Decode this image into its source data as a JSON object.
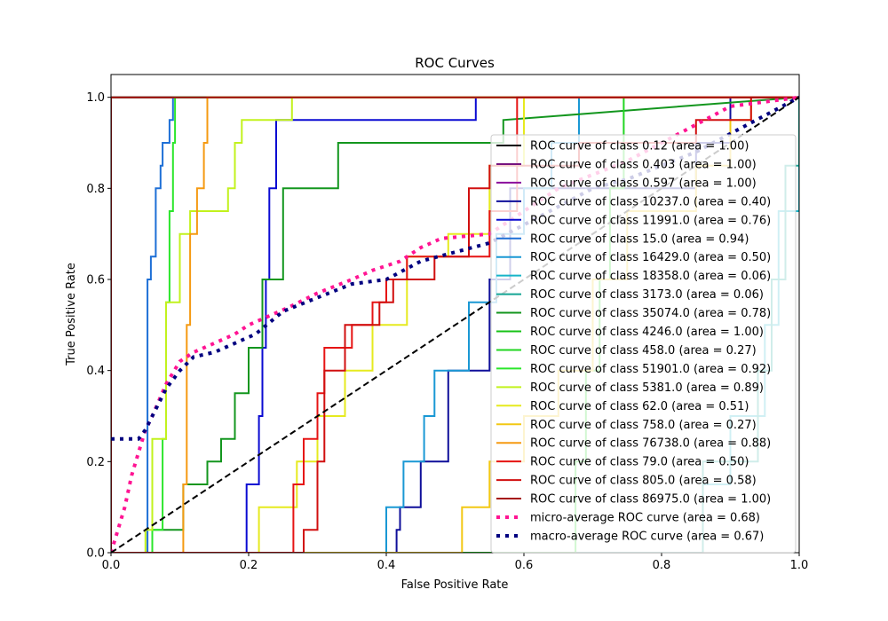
{
  "chart_data": {
    "type": "line",
    "title": "ROC Curves",
    "xlabel": "False Positive Rate",
    "ylabel": "True Positive Rate",
    "xlim": [
      0.0,
      1.0
    ],
    "ylim": [
      0.0,
      1.05
    ],
    "xticks": [
      "0.0",
      "0.2",
      "0.4",
      "0.6",
      "0.8",
      "1.0"
    ],
    "yticks": [
      "0.0",
      "0.2",
      "0.4",
      "0.6",
      "0.8",
      "1.0"
    ],
    "grid": false,
    "legend_position": "lower right",
    "series": [
      {
        "name": "ROC curve of class 0.12 (area = 1.00)",
        "color": "#000000",
        "style": "solid",
        "x": [
          0,
          0,
          1
        ],
        "y": [
          0,
          1,
          1
        ]
      },
      {
        "name": "ROC curve of class 0.403 (area = 1.00)",
        "color": "#76137f",
        "style": "solid",
        "x": [
          0,
          0,
          1
        ],
        "y": [
          0,
          1,
          1
        ]
      },
      {
        "name": "ROC curve of class 0.597 (area = 1.00)",
        "color": "#8b0f9c",
        "style": "solid",
        "x": [
          0,
          0,
          1
        ],
        "y": [
          0,
          1,
          1
        ]
      },
      {
        "name": "ROC curve of class 10237.0 (area = 0.40)",
        "color": "#0f0f9a",
        "style": "solid",
        "x": [
          0.415,
          0.415,
          0.42,
          0.42,
          0.45,
          0.45,
          0.49,
          0.49,
          0.55,
          0.55,
          0.58,
          0.58,
          0.85,
          0.85,
          0.9,
          0.9,
          1.0
        ],
        "y": [
          0,
          0.05,
          0.05,
          0.1,
          0.1,
          0.2,
          0.2,
          0.4,
          0.4,
          0.6,
          0.6,
          0.8,
          0.8,
          0.9,
          0.9,
          1.0,
          1.0
        ]
      },
      {
        "name": "ROC curve of class 11991.0 (area = 0.76)",
        "color": "#0a0ad2",
        "style": "solid",
        "x": [
          0,
          0.197,
          0.197,
          0.215,
          0.215,
          0.22,
          0.22,
          0.225,
          0.225,
          0.23,
          0.23,
          0.24,
          0.24,
          0.53,
          0.53,
          1.0
        ],
        "y": [
          0,
          0,
          0.15,
          0.15,
          0.3,
          0.3,
          0.45,
          0.45,
          0.6,
          0.6,
          0.8,
          0.8,
          0.95,
          0.95,
          1.0,
          1.0
        ]
      },
      {
        "name": "ROC curve of class 15.0 (area = 0.94)",
        "color": "#1d6fd6",
        "style": "solid",
        "x": [
          0,
          0.053,
          0.053,
          0.058,
          0.058,
          0.065,
          0.065,
          0.072,
          0.072,
          0.075,
          0.075,
          0.085,
          0.085,
          0.09,
          0.09,
          1.0
        ],
        "y": [
          0,
          0,
          0.6,
          0.6,
          0.65,
          0.65,
          0.8,
          0.8,
          0.85,
          0.85,
          0.9,
          0.9,
          0.95,
          0.95,
          1.0,
          1.0
        ]
      },
      {
        "name": "ROC curve of class 16429.0 (area = 0.50)",
        "color": "#1a98d4",
        "style": "solid",
        "x": [
          0,
          0.4,
          0.4,
          0.425,
          0.425,
          0.455,
          0.455,
          0.47,
          0.47,
          0.52,
          0.52,
          0.56,
          0.56,
          0.6,
          0.6,
          0.64,
          0.64,
          0.68,
          0.68,
          1.0
        ],
        "y": [
          0,
          0,
          0.1,
          0.1,
          0.2,
          0.2,
          0.3,
          0.3,
          0.4,
          0.4,
          0.55,
          0.55,
          0.7,
          0.7,
          0.8,
          0.8,
          0.9,
          0.9,
          1.0,
          1.0
        ]
      },
      {
        "name": "ROC curve of class 18358.0 (area = 0.06)",
        "color": "#17b4c8",
        "style": "solid",
        "x": [
          0,
          0.86,
          0.86,
          0.9,
          0.9,
          0.95,
          0.95,
          0.97,
          0.97,
          1.0,
          1.0
        ],
        "y": [
          0,
          0,
          0.15,
          0.15,
          0.3,
          0.3,
          0.5,
          0.5,
          0.75,
          0.75,
          1.0
        ]
      },
      {
        "name": "ROC curve of class 3173.0 (area = 0.06)",
        "color": "#14a594",
        "style": "solid",
        "x": [
          0,
          0.86,
          0.86,
          0.94,
          0.94,
          0.96,
          0.96,
          0.98,
          0.98,
          1.0,
          1.0
        ],
        "y": [
          0,
          0,
          0.2,
          0.2,
          0.4,
          0.4,
          0.6,
          0.6,
          0.85,
          0.85,
          1.0
        ]
      },
      {
        "name": "ROC curve of class 35074.0 (area = 0.78)",
        "color": "#13961e",
        "style": "solid",
        "x": [
          0,
          0.06,
          0.06,
          0.105,
          0.105,
          0.14,
          0.14,
          0.16,
          0.16,
          0.18,
          0.18,
          0.2,
          0.2,
          0.22,
          0.22,
          0.25,
          0.25,
          0.33,
          0.33,
          0.57,
          0.57,
          1.0
        ],
        "y": [
          0,
          0,
          0.05,
          0.05,
          0.15,
          0.15,
          0.2,
          0.2,
          0.25,
          0.25,
          0.35,
          0.35,
          0.45,
          0.45,
          0.6,
          0.6,
          0.8,
          0.8,
          0.9,
          0.9,
          0.95,
          1.0
        ]
      },
      {
        "name": "ROC curve of class 4246.0 (area = 1.00)",
        "color": "#17c217",
        "style": "solid",
        "x": [
          0,
          0,
          1
        ],
        "y": [
          0,
          1,
          1
        ]
      },
      {
        "name": "ROC curve of class 458.0 (area = 0.27)",
        "color": "#21d621",
        "style": "solid",
        "x": [
          0,
          0.675,
          0.675,
          0.69,
          0.69,
          0.71,
          0.71,
          0.725,
          0.725,
          0.745,
          0.745,
          1.0
        ],
        "y": [
          0,
          0,
          0.2,
          0.2,
          0.4,
          0.4,
          0.6,
          0.6,
          0.8,
          0.8,
          1.0,
          1.0
        ]
      },
      {
        "name": "ROC curve of class 51901.0 (area = 0.92)",
        "color": "#2be62b",
        "style": "solid",
        "x": [
          0,
          0.06,
          0.06,
          0.075,
          0.075,
          0.08,
          0.08,
          0.085,
          0.085,
          0.09,
          0.09,
          0.093,
          0.093,
          1.0
        ],
        "y": [
          0,
          0,
          0.05,
          0.05,
          0.25,
          0.25,
          0.55,
          0.55,
          0.75,
          0.75,
          0.9,
          0.9,
          1.0,
          1.0
        ]
      },
      {
        "name": "ROC curve of class 5381.0 (area = 0.89)",
        "color": "#c2f21d",
        "style": "solid",
        "x": [
          0,
          0.05,
          0.05,
          0.06,
          0.06,
          0.08,
          0.08,
          0.1,
          0.1,
          0.115,
          0.115,
          0.13,
          0.13,
          0.17,
          0.17,
          0.18,
          0.18,
          0.19,
          0.19,
          0.263,
          0.263,
          1.0
        ],
        "y": [
          0,
          0,
          0.05,
          0.05,
          0.25,
          0.25,
          0.55,
          0.55,
          0.7,
          0.7,
          0.75,
          0.75,
          0.75,
          0.75,
          0.8,
          0.8,
          0.9,
          0.9,
          0.95,
          0.95,
          1.0,
          1.0
        ]
      },
      {
        "name": "ROC curve of class 62.0 (area = 0.51)",
        "color": "#e6ea1f",
        "style": "solid",
        "x": [
          0,
          0.215,
          0.215,
          0.27,
          0.27,
          0.3,
          0.3,
          0.34,
          0.34,
          0.38,
          0.38,
          0.43,
          0.43,
          0.49,
          0.49,
          0.55,
          0.55,
          0.6,
          0.6,
          1.0
        ],
        "y": [
          0,
          0,
          0.1,
          0.1,
          0.2,
          0.2,
          0.3,
          0.3,
          0.4,
          0.4,
          0.5,
          0.5,
          0.65,
          0.65,
          0.7,
          0.7,
          0.85,
          0.85,
          1.0,
          1.0
        ]
      },
      {
        "name": "ROC curve of class 758.0 (area = 0.27)",
        "color": "#f2c814",
        "style": "solid",
        "x": [
          0,
          0.51,
          0.51,
          0.55,
          0.55,
          0.6,
          0.6,
          0.65,
          0.65,
          0.7,
          0.7,
          0.75,
          0.75,
          0.85,
          0.85,
          0.9,
          0.9,
          0.93,
          0.93,
          1.0
        ],
        "y": [
          0,
          0,
          0.1,
          0.1,
          0.2,
          0.2,
          0.3,
          0.3,
          0.4,
          0.4,
          0.6,
          0.6,
          0.75,
          0.75,
          0.85,
          0.85,
          0.95,
          0.95,
          1.0,
          1.0
        ]
      },
      {
        "name": "ROC curve of class 76738.0 (area = 0.88)",
        "color": "#f59a12",
        "style": "solid",
        "x": [
          0,
          0.105,
          0.105,
          0.11,
          0.11,
          0.115,
          0.115,
          0.125,
          0.125,
          0.135,
          0.135,
          0.14,
          0.14,
          1.0
        ],
        "y": [
          0,
          0,
          0.15,
          0.15,
          0.5,
          0.5,
          0.7,
          0.7,
          0.8,
          0.8,
          0.9,
          0.9,
          1.0,
          1.0
        ]
      },
      {
        "name": "ROC curve of class 79.0 (area = 0.50)",
        "color": "#e61414",
        "style": "solid",
        "x": [
          0,
          0.265,
          0.265,
          0.28,
          0.28,
          0.3,
          0.3,
          0.31,
          0.31,
          0.35,
          0.35,
          0.38,
          0.38,
          0.4,
          0.4,
          0.43,
          0.43,
          0.55,
          0.55,
          0.59,
          0.59,
          1.0
        ],
        "y": [
          0,
          0,
          0.15,
          0.15,
          0.25,
          0.25,
          0.35,
          0.35,
          0.45,
          0.45,
          0.5,
          0.5,
          0.55,
          0.55,
          0.6,
          0.6,
          0.65,
          0.65,
          0.75,
          0.75,
          1.0,
          1.0
        ]
      },
      {
        "name": "ROC curve of class 805.0 (area = 0.58)",
        "color": "#d10f0f",
        "style": "solid",
        "x": [
          0,
          0.28,
          0.28,
          0.3,
          0.3,
          0.31,
          0.31,
          0.34,
          0.34,
          0.39,
          0.39,
          0.41,
          0.41,
          0.47,
          0.47,
          0.52,
          0.52,
          0.55,
          0.55,
          0.68,
          0.68,
          0.85,
          0.85,
          0.93,
          0.93,
          1.0
        ],
        "y": [
          0,
          0,
          0.05,
          0.05,
          0.2,
          0.2,
          0.4,
          0.4,
          0.5,
          0.5,
          0.55,
          0.55,
          0.6,
          0.6,
          0.65,
          0.65,
          0.8,
          0.8,
          0.85,
          0.85,
          0.9,
          0.9,
          0.95,
          0.95,
          1.0,
          1.0
        ]
      },
      {
        "name": "ROC curve of class 86975.0 (area = 1.00)",
        "color": "#a50f0f",
        "style": "solid",
        "x": [
          0,
          0,
          1
        ],
        "y": [
          0,
          1,
          1
        ]
      },
      {
        "name": "micro-average ROC curve (area = 0.68)",
        "color": "#ff1493",
        "style": "dotted",
        "x": [
          0,
          0.01,
          0.02,
          0.03,
          0.04,
          0.05,
          0.06,
          0.08,
          0.1,
          0.12,
          0.15,
          0.18,
          0.2,
          0.23,
          0.26,
          0.3,
          0.35,
          0.38,
          0.42,
          0.45,
          0.48,
          0.55,
          0.6,
          0.65,
          0.7,
          0.75,
          0.8,
          0.85,
          0.9,
          0.95,
          1.0
        ],
        "y": [
          0,
          0.05,
          0.1,
          0.17,
          0.22,
          0.27,
          0.3,
          0.37,
          0.42,
          0.44,
          0.46,
          0.48,
          0.5,
          0.52,
          0.54,
          0.57,
          0.6,
          0.62,
          0.64,
          0.67,
          0.69,
          0.7,
          0.75,
          0.8,
          0.83,
          0.86,
          0.9,
          0.94,
          0.98,
          0.99,
          1.0
        ]
      },
      {
        "name": "macro-average ROC curve (area = 0.67)",
        "color": "#000080",
        "style": "dotted",
        "x": [
          0,
          0.04,
          0.05,
          0.06,
          0.07,
          0.08,
          0.09,
          0.1,
          0.12,
          0.15,
          0.18,
          0.21,
          0.25,
          0.3,
          0.35,
          0.4,
          0.45,
          0.5,
          0.55,
          0.6,
          0.65,
          0.7,
          0.75,
          0.8,
          0.85,
          0.9,
          0.95,
          1.0
        ],
        "y": [
          0.25,
          0.25,
          0.27,
          0.3,
          0.33,
          0.36,
          0.38,
          0.4,
          0.43,
          0.44,
          0.46,
          0.48,
          0.53,
          0.56,
          0.59,
          0.6,
          0.64,
          0.66,
          0.68,
          0.72,
          0.76,
          0.8,
          0.82,
          0.85,
          0.88,
          0.92,
          0.96,
          1.0
        ]
      },
      {
        "name": "",
        "color": "#000000",
        "style": "dashed",
        "x": [
          0,
          1
        ],
        "y": [
          0,
          1
        ]
      }
    ]
  }
}
